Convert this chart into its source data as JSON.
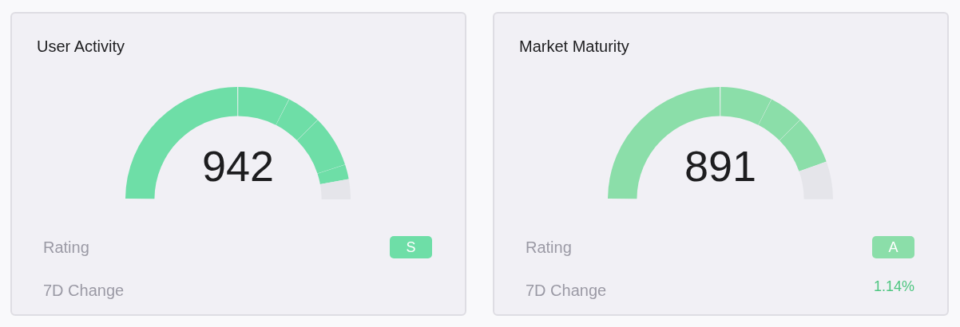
{
  "chart_data": [
    {
      "type": "donut",
      "title": "User Activity",
      "categories": [
        null,
        null,
        null,
        null,
        null,
        null
      ],
      "values": [
        50,
        15,
        10,
        15,
        4.2,
        5.8
      ],
      "colors": [
        "#6edea7",
        "#6edea7",
        "#6edea7",
        "#6edea7",
        "#6edea7",
        "#e5e5ea"
      ],
      "annotations": [
        "942",
        "Rating",
        "S",
        "7D Change"
      ]
    },
    {
      "type": "donut",
      "title": "Market Maturity",
      "categories": [
        null,
        null,
        null,
        null,
        null
      ],
      "values": [
        50,
        15,
        10,
        14.1,
        10.9
      ],
      "colors": [
        "#8bdea9",
        "#8bdea9",
        "#8bdea9",
        "#8bdea9",
        "#e5e5ea"
      ],
      "annotations": [
        "891",
        "Rating",
        "A",
        "7D Change",
        "1.14%"
      ]
    }
  ]
}
